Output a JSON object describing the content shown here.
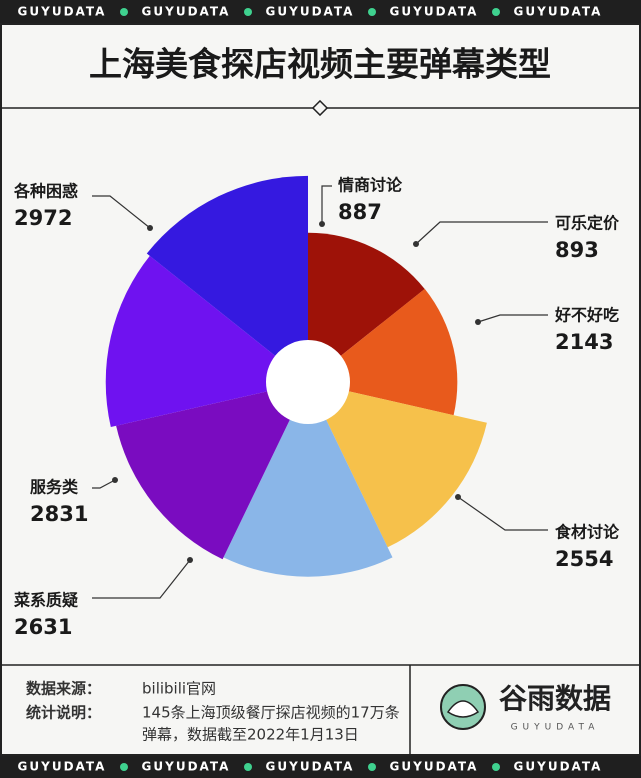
{
  "banner": "GUYUDATA",
  "chart_data": {
    "type": "rose",
    "title": "上海美食探店视频主要弹幕类型",
    "categories": [
      "情商讨论",
      "可乐定价",
      "好不好吃",
      "食材讨论",
      "菜系质疑",
      "服务类",
      "各种困惑"
    ],
    "values": [
      887,
      893,
      2143,
      2554,
      2631,
      2831,
      2972
    ],
    "colors": [
      "#9e1208",
      "#e85a1c",
      "#f6c14b",
      "#8ab6e8",
      "#7a0cc0",
      "#6f12f0",
      "#3519e0"
    ]
  },
  "footer": {
    "source_label": "数据来源：",
    "source": "bilibili官网",
    "note_label": "统计说明：",
    "note_lines": [
      "145条上海顶级餐厅探店视频的17万条",
      "弹幕，数据截至2022年1月13日"
    ]
  },
  "logo": {
    "name": "谷雨数据",
    "brand": "GUYUDATA"
  }
}
